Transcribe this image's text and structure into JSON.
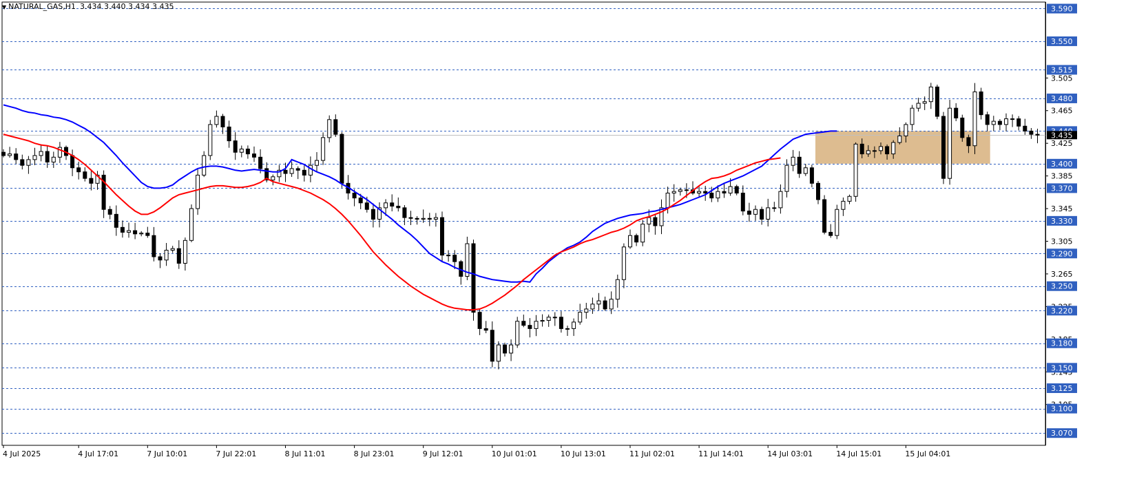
{
  "header": {
    "symbol_line": "NATURAL_GAS,H1",
    "ohlc": "3.434 3.440 3.434 3.435",
    "collapse_glyph": "▼"
  },
  "chart_data": {
    "type": "candlestick",
    "symbol": "NATURAL_GAS",
    "timeframe": "H1",
    "ylim": [
      3.055,
      3.598
    ],
    "grid": false,
    "colors": {
      "background": "#ffffff",
      "bull_body": "#ffffff",
      "bear_body": "#000000",
      "wick": "#000000",
      "ma_fast": "#0000ff",
      "ma_slow": "#ff0000",
      "level_line": "#3060c0",
      "level_box": "#3060c0",
      "zone_fill": "#dbb88a",
      "bid_line": "#c0c0c0"
    },
    "price_axis_ticks": [
      "3.505",
      "3.465",
      "3.425",
      "3.385",
      "3.345",
      "3.305",
      "3.265",
      "3.225",
      "3.185",
      "3.145",
      "3.105"
    ],
    "current_price": 3.435,
    "current_price_label": "3.435",
    "levels": [
      {
        "value": 3.59,
        "label": "3.590"
      },
      {
        "value": 3.55,
        "label": "3.550"
      },
      {
        "value": 3.515,
        "label": "3.515"
      },
      {
        "value": 3.48,
        "label": "3.480"
      },
      {
        "value": 3.44,
        "label": "3.440"
      },
      {
        "value": 3.4,
        "label": "3.400"
      },
      {
        "value": 3.37,
        "label": "3.370"
      },
      {
        "value": 3.33,
        "label": "3.330"
      },
      {
        "value": 3.29,
        "label": "3.290"
      },
      {
        "value": 3.25,
        "label": "3.250"
      },
      {
        "value": 3.22,
        "label": "3.220"
      },
      {
        "value": 3.18,
        "label": "3.180"
      },
      {
        "value": 3.15,
        "label": "3.150"
      },
      {
        "value": 3.125,
        "label": "3.125"
      },
      {
        "value": 3.1,
        "label": "3.100"
      },
      {
        "value": 3.07,
        "label": "3.070"
      }
    ],
    "zone": {
      "from_bar": 130,
      "to_bar": 157,
      "price_low": 3.4,
      "price_high": 3.44
    },
    "time_labels": [
      {
        "bar": 0,
        "label": "4 Jul 2025"
      },
      {
        "bar": 12,
        "label": "4 Jul 17:01"
      },
      {
        "bar": 23,
        "label": "7 Jul 10:01"
      },
      {
        "bar": 34,
        "label": "7 Jul 22:01"
      },
      {
        "bar": 45,
        "label": "8 Jul 11:01"
      },
      {
        "bar": 56,
        "label": "8 Jul 23:01"
      },
      {
        "bar": 67,
        "label": "9 Jul 12:01"
      },
      {
        "bar": 78,
        "label": "10 Jul 01:01"
      },
      {
        "bar": 89,
        "label": "10 Jul 13:01"
      },
      {
        "bar": 100,
        "label": "11 Jul 02:01"
      },
      {
        "bar": 111,
        "label": "11 Jul 14:01"
      },
      {
        "bar": 122,
        "label": "14 Jul 03:01"
      },
      {
        "bar": 133,
        "label": "14 Jul 15:01"
      },
      {
        "bar": 144,
        "label": "15 Jul 04:01"
      }
    ],
    "closes": [
      3.41,
      3.412,
      3.405,
      3.398,
      3.405,
      3.41,
      3.415,
      3.402,
      3.408,
      3.42,
      3.41,
      3.395,
      3.39,
      3.382,
      3.376,
      3.386,
      3.344,
      3.338,
      3.322,
      3.316,
      3.318,
      3.314,
      3.315,
      3.312,
      3.286,
      3.282,
      3.294,
      3.296,
      3.278,
      3.306,
      3.345,
      3.386,
      3.41,
      3.448,
      3.458,
      3.445,
      3.428,
      3.414,
      3.418,
      3.412,
      3.408,
      3.394,
      3.38,
      3.384,
      3.392,
      3.388,
      3.394,
      3.392,
      3.386,
      3.398,
      3.404,
      3.432,
      3.454,
      3.436,
      3.376,
      3.364,
      3.358,
      3.352,
      3.344,
      3.332,
      3.346,
      3.352,
      3.348,
      3.346,
      3.334,
      3.333,
      3.332,
      3.333,
      3.332,
      3.334,
      3.288,
      3.288,
      3.28,
      3.262,
      3.302,
      3.218,
      3.198,
      3.196,
      3.158,
      3.178,
      3.168,
      3.178,
      3.207,
      3.202,
      3.198,
      3.207,
      3.208,
      3.212,
      3.212,
      3.198,
      3.198,
      3.206,
      3.218,
      3.222,
      3.228,
      3.232,
      3.222,
      3.234,
      3.258,
      3.298,
      3.312,
      3.304,
      3.326,
      3.334,
      3.324,
      3.346,
      3.364,
      3.366,
      3.368,
      3.368,
      3.364,
      3.366,
      3.364,
      3.358,
      3.366,
      3.364,
      3.372,
      3.364,
      3.342,
      3.338,
      3.344,
      3.332,
      3.346,
      3.346,
      3.366,
      3.398,
      3.408,
      3.388,
      3.395,
      3.376,
      3.356,
      3.316,
      3.312,
      3.344,
      3.354,
      3.36,
      3.424,
      3.412,
      3.416,
      3.416,
      3.421,
      3.412,
      3.426,
      3.434,
      3.448,
      3.468,
      3.474,
      3.476,
      3.494,
      3.458,
      3.382,
      3.468,
      3.456,
      3.432,
      3.422,
      3.488,
      3.46,
      3.448,
      3.452,
      3.448,
      3.455,
      3.455,
      3.446,
      3.44,
      3.436,
      3.435
    ],
    "series": [
      {
        "name": "",
        "color": "#0000ff",
        "values": [
          3.472,
          3.47,
          3.468,
          3.465,
          3.463,
          3.462,
          3.46,
          3.459,
          3.457,
          3.456,
          3.454,
          3.451,
          3.447,
          3.443,
          3.438,
          3.432,
          3.426,
          3.418,
          3.41,
          3.401,
          3.393,
          3.385,
          3.377,
          3.372,
          3.37,
          3.37,
          3.371,
          3.374,
          3.38,
          3.385,
          3.39,
          3.394,
          3.396,
          3.397,
          3.397,
          3.396,
          3.394,
          3.392,
          3.391,
          3.392,
          3.393,
          3.392,
          3.391,
          3.39,
          3.39,
          3.394,
          3.405,
          3.402,
          3.399,
          3.394,
          3.39,
          3.387,
          3.384,
          3.38,
          3.375,
          3.371,
          3.366,
          3.361,
          3.356,
          3.35,
          3.344,
          3.338,
          3.332,
          3.325,
          3.319,
          3.313,
          3.306,
          3.298,
          3.29,
          3.285,
          3.28,
          3.277,
          3.273,
          3.27,
          3.267,
          3.265,
          3.262,
          3.26,
          3.258,
          3.257,
          3.256,
          3.255,
          3.255,
          3.256,
          3.255,
          3.265,
          3.272,
          3.28,
          3.286,
          3.292,
          3.297,
          3.3,
          3.304,
          3.31,
          3.317,
          3.322,
          3.327,
          3.33,
          3.333,
          3.335,
          3.337,
          3.338,
          3.339,
          3.341,
          3.342,
          3.344,
          3.346,
          3.348,
          3.35,
          3.353,
          3.356,
          3.359,
          3.362,
          3.367,
          3.372,
          3.376,
          3.379,
          3.382,
          3.385,
          3.389,
          3.393,
          3.397,
          3.404,
          3.411,
          3.418,
          3.424,
          3.43,
          3.433,
          3.436,
          3.437,
          3.438,
          3.439,
          3.44,
          3.44
        ],
        "start_bar": 0
      },
      {
        "name": "",
        "color": "#ff0000",
        "values": [
          3.436,
          3.434,
          3.432,
          3.43,
          3.428,
          3.425,
          3.423,
          3.422,
          3.42,
          3.417,
          3.414,
          3.41,
          3.405,
          3.399,
          3.392,
          3.385,
          3.378,
          3.37,
          3.362,
          3.355,
          3.348,
          3.342,
          3.338,
          3.338,
          3.341,
          3.346,
          3.352,
          3.358,
          3.362,
          3.364,
          3.366,
          3.368,
          3.37,
          3.372,
          3.373,
          3.373,
          3.372,
          3.371,
          3.371,
          3.372,
          3.374,
          3.377,
          3.382,
          3.378,
          3.376,
          3.374,
          3.372,
          3.37,
          3.367,
          3.364,
          3.36,
          3.356,
          3.351,
          3.345,
          3.338,
          3.33,
          3.321,
          3.312,
          3.302,
          3.292,
          3.284,
          3.276,
          3.269,
          3.262,
          3.256,
          3.25,
          3.245,
          3.24,
          3.236,
          3.232,
          3.228,
          3.225,
          3.223,
          3.222,
          3.221,
          3.221,
          3.222,
          3.225,
          3.229,
          3.234,
          3.239,
          3.245,
          3.251,
          3.258,
          3.264,
          3.27,
          3.276,
          3.282,
          3.288,
          3.292,
          3.295,
          3.298,
          3.302,
          3.305,
          3.307,
          3.31,
          3.313,
          3.316,
          3.318,
          3.321,
          3.325,
          3.33,
          3.333,
          3.335,
          3.338,
          3.341,
          3.345,
          3.35,
          3.355,
          3.361,
          3.367,
          3.373,
          3.378,
          3.382,
          3.383,
          3.385,
          3.388,
          3.392,
          3.395,
          3.398,
          3.401,
          3.403,
          3.405,
          3.406,
          3.407
        ],
        "start_bar": 0
      }
    ]
  }
}
